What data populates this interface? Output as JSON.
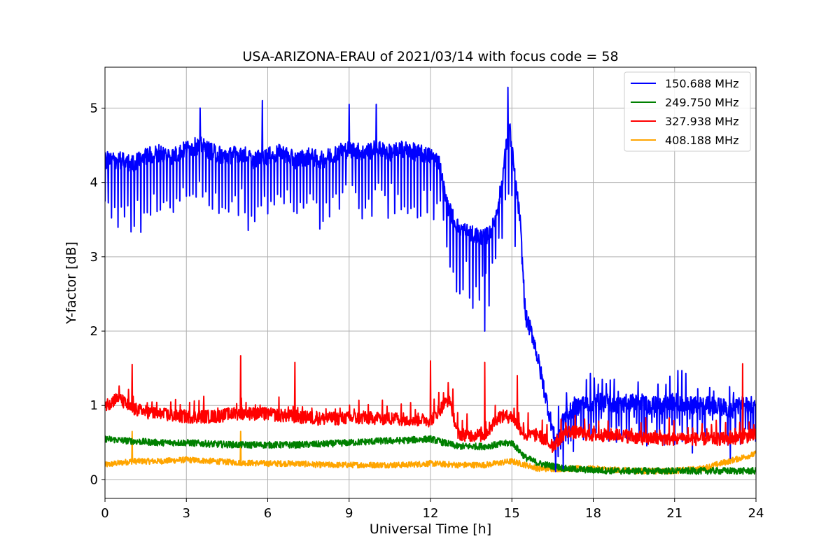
{
  "chart_data": {
    "type": "line",
    "title": "USA-ARIZONA-ERAU of 2021/03/14 with focus code = 58",
    "xlabel": "Universal Time [h]",
    "ylabel": "Y-factor [dB]",
    "xlim": [
      0,
      24
    ],
    "ylim": [
      -0.25,
      5.55
    ],
    "xticks": [
      0,
      3,
      6,
      9,
      12,
      15,
      18,
      21,
      24
    ],
    "yticks": [
      0,
      1,
      2,
      3,
      4,
      5
    ],
    "grid": true,
    "legend_position": "top-right",
    "series": [
      {
        "name": "150.688 MHz",
        "color": "#0000ff",
        "x": [
          0,
          0.5,
          1,
          1.5,
          2,
          2.5,
          3,
          3.5,
          4,
          4.5,
          5,
          5.5,
          6,
          6.5,
          7,
          7.5,
          8,
          8.5,
          9,
          9.5,
          10,
          10.5,
          11,
          11.5,
          12,
          12.3,
          12.6,
          13,
          13.5,
          14,
          14.3,
          14.6,
          14.9,
          15.1,
          15.3,
          15.5,
          15.8,
          16.2,
          16.6,
          17,
          17.5,
          18,
          18.5,
          19,
          19.5,
          20,
          20.5,
          21,
          21.5,
          22,
          22.5,
          23,
          23.5,
          24
        ],
        "y": [
          4.3,
          4.3,
          4.25,
          4.35,
          4.4,
          4.35,
          4.45,
          4.5,
          4.4,
          4.35,
          4.4,
          4.3,
          4.35,
          4.4,
          4.3,
          4.35,
          4.3,
          4.4,
          4.45,
          4.4,
          4.45,
          4.4,
          4.45,
          4.4,
          4.35,
          4.3,
          3.7,
          3.4,
          3.3,
          3.25,
          3.4,
          3.9,
          4.8,
          4.1,
          3.5,
          2.2,
          1.9,
          1.2,
          0.5,
          0.9,
          1.0,
          1.05,
          1.05,
          1.0,
          1.05,
          1.0,
          1.0,
          1.05,
          1.0,
          1.0,
          1.0,
          0.95,
          1.0,
          1.0
        ],
        "spikes": [
          [
            5.8,
            5.1
          ],
          [
            3.5,
            5.0
          ],
          [
            9,
            5.05
          ],
          [
            10,
            5.05
          ],
          [
            14.85,
            5.28
          ],
          [
            14,
            2.0
          ]
        ]
      },
      {
        "name": "249.750 MHz",
        "color": "#008000",
        "x": [
          0,
          1,
          2,
          3,
          4,
          5,
          6,
          7,
          8,
          9,
          10,
          11,
          12,
          13,
          14,
          15,
          15.5,
          16,
          17,
          18,
          19,
          20,
          21,
          22,
          23,
          24
        ],
        "y": [
          0.55,
          0.52,
          0.5,
          0.5,
          0.48,
          0.47,
          0.47,
          0.47,
          0.48,
          0.5,
          0.52,
          0.53,
          0.55,
          0.45,
          0.45,
          0.5,
          0.3,
          0.22,
          0.15,
          0.13,
          0.12,
          0.12,
          0.12,
          0.12,
          0.12,
          0.12
        ],
        "spikes": []
      },
      {
        "name": "327.938 MHz",
        "color": "#ff0000",
        "x": [
          0,
          0.5,
          1,
          2,
          3,
          4,
          5,
          6,
          7,
          8,
          9,
          10,
          11,
          12,
          12.7,
          13,
          13.5,
          14,
          14.5,
          15,
          15.5,
          16,
          16.5,
          17,
          18,
          19,
          20,
          21,
          22,
          23,
          24
        ],
        "y": [
          1.0,
          1.1,
          0.95,
          0.88,
          0.85,
          0.85,
          0.9,
          0.88,
          0.85,
          0.82,
          0.83,
          0.83,
          0.82,
          0.8,
          1.1,
          0.62,
          0.6,
          0.6,
          0.85,
          0.85,
          0.6,
          0.6,
          0.45,
          0.65,
          0.6,
          0.6,
          0.55,
          0.55,
          0.55,
          0.55,
          0.6
        ],
        "spikes": [
          [
            1,
            1.55
          ],
          [
            5,
            1.67
          ],
          [
            7,
            1.58
          ],
          [
            12,
            1.6
          ],
          [
            14,
            1.58
          ],
          [
            15.2,
            1.4
          ],
          [
            23.5,
            1.56
          ]
        ]
      },
      {
        "name": "408.188 MHz",
        "color": "#ffa500",
        "x": [
          0,
          1,
          2,
          3,
          4,
          5,
          6,
          7,
          8,
          9,
          10,
          11,
          12,
          13,
          14,
          15,
          16,
          17,
          18,
          19,
          20,
          21,
          22,
          23,
          24
        ],
        "y": [
          0.2,
          0.25,
          0.25,
          0.27,
          0.25,
          0.23,
          0.22,
          0.22,
          0.2,
          0.2,
          0.2,
          0.2,
          0.22,
          0.2,
          0.2,
          0.25,
          0.15,
          0.15,
          0.15,
          0.13,
          0.12,
          0.12,
          0.15,
          0.25,
          0.35
        ],
        "spikes": [
          [
            1,
            0.65
          ],
          [
            5,
            0.65
          ]
        ]
      }
    ]
  }
}
